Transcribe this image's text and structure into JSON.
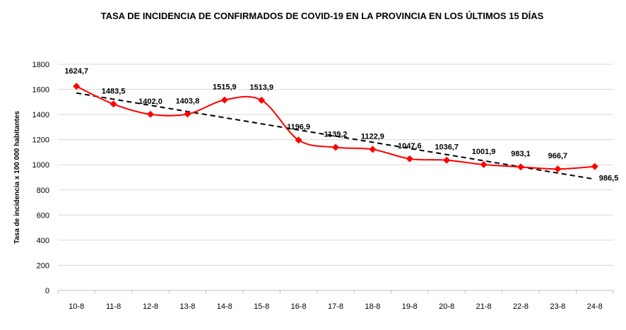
{
  "chart_data": {
    "type": "line",
    "title": "TASA DE INCIDENCIA  DE CONFIRMADOS DE COVID-19 EN LA PROVINCIA EN LOS ÚLTIMOS 15 DÍAS",
    "xlabel": "",
    "ylabel": "Tasa de incidencia  x 100 000 habitantes",
    "ylim": [
      0,
      1800
    ],
    "yticks": [
      0,
      200,
      400,
      600,
      800,
      1000,
      1200,
      1400,
      1600,
      1800
    ],
    "grid": true,
    "categories": [
      "10-8",
      "11-8",
      "12-8",
      "13-8",
      "14-8",
      "15-8",
      "16-8",
      "17-8",
      "18-8",
      "19-8",
      "20-8",
      "21-8",
      "22-8",
      "23-8",
      "24-8"
    ],
    "series": [
      {
        "name": "Tasa de incidencia",
        "color": "#ff0000",
        "values": [
          1624.7,
          1483.5,
          1402.0,
          1403.8,
          1515.9,
          1513.9,
          1196.9,
          1139.2,
          1122.9,
          1047.6,
          1036.7,
          1001.9,
          983.1,
          966.7,
          986.5
        ],
        "labels": [
          "1624,7",
          "1483,5",
          "1402,0",
          "1403,8",
          "1515,9",
          "1513,9",
          "1196,9",
          "1139,2",
          "1122,9",
          "1047,6",
          "1036,7",
          "1001,9",
          "983,1",
          "966,7",
          "986,5"
        ]
      },
      {
        "name": "Tendencia lineal",
        "type": "trendline",
        "color": "#000000",
        "style": "dashed"
      }
    ]
  }
}
